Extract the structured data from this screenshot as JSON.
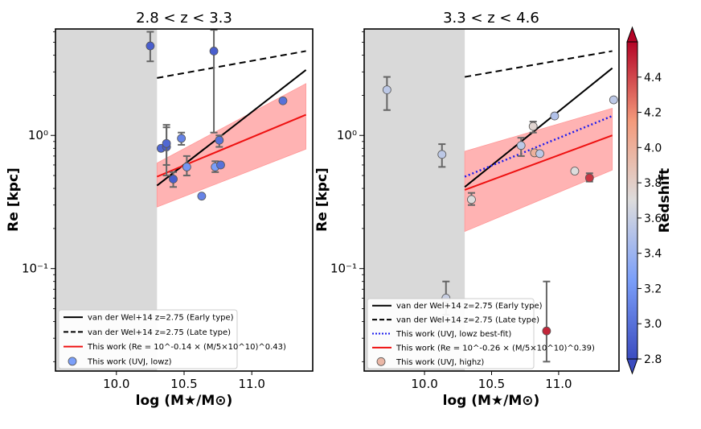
{
  "chart_data": [
    {
      "type": "scatter",
      "title": "2.8 < z < 3.3",
      "xlabel": "log (M★/M⊙)",
      "ylabel": "Re [kpc]",
      "yscale": "log",
      "xlim": [
        9.55,
        11.45
      ],
      "ylim": [
        0.017,
        6.3
      ],
      "xticks": [
        "10.0",
        "10.5",
        "11.0"
      ],
      "yticks": [
        "10⁰",
        "10⁻¹"
      ],
      "shaded_region": {
        "x": [
          9.55,
          10.3
        ]
      },
      "lines": [
        {
          "name": "van der Wel+14 z=2.75 (Early type)",
          "style": "solid",
          "color": "#000000",
          "x": [
            10.3,
            11.4
          ],
          "y": [
            0.42,
            3.1
          ]
        },
        {
          "name": "van der Wel+14 z=2.75 (Late type)",
          "style": "dashed",
          "color": "#000000",
          "x": [
            10.3,
            11.4
          ],
          "y": [
            2.7,
            4.3
          ]
        },
        {
          "name": "This work (Re = 10^-0.14 × (M/5×10^10)^0.43)",
          "style": "solid",
          "color": "#ee1111",
          "x": [
            10.3,
            11.4
          ],
          "y": [
            0.49,
            1.43
          ],
          "band_lower": [
            0.29,
            0.79
          ],
          "band_upper": [
            0.62,
            2.45
          ]
        }
      ],
      "points": [
        {
          "x": 10.25,
          "y": 4.7,
          "yerr": [
            3.6,
            6.0
          ],
          "z": 2.9
        },
        {
          "x": 10.33,
          "y": 0.8,
          "yerr": null,
          "z": 2.95
        },
        {
          "x": 10.37,
          "y": 0.82,
          "yerr": [
            0.5,
            1.2
          ],
          "z": 2.9
        },
        {
          "x": 10.37,
          "y": 0.87,
          "yerr": [
            0.6,
            1.15
          ],
          "z": 2.95
        },
        {
          "x": 10.42,
          "y": 0.47,
          "yerr": [
            0.41,
            0.53
          ],
          "z": 2.9
        },
        {
          "x": 10.48,
          "y": 0.95,
          "yerr": [
            0.85,
            1.05
          ],
          "z": 3.1
        },
        {
          "x": 10.52,
          "y": 0.58,
          "yerr": [
            0.5,
            0.7
          ],
          "z": 3.2
        },
        {
          "x": 10.63,
          "y": 0.35,
          "yerr": null,
          "z": 3.1
        },
        {
          "x": 10.72,
          "y": 4.3,
          "yerr": [
            1.05,
            6.2
          ],
          "z": 2.9
        },
        {
          "x": 10.73,
          "y": 0.58,
          "yerr": [
            0.53,
            0.64
          ],
          "z": 3.25
        },
        {
          "x": 10.76,
          "y": 0.92,
          "yerr": [
            0.82,
            1.0
          ],
          "z": 3.0
        },
        {
          "x": 10.77,
          "y": 0.6,
          "yerr": null,
          "z": 3.0
        },
        {
          "x": 11.23,
          "y": 1.82,
          "yerr": null,
          "z": 3.0
        }
      ],
      "legend": {
        "placement": "lower-left",
        "entries": [
          "van der Wel+14 z=2.75 (Early type)",
          "van der Wel+14 z=2.75 (Late type)",
          "This work (Re = 10^-0.14 × (M/5×10^10)^0.43)",
          "This work (UVJ, lowz)"
        ]
      }
    },
    {
      "type": "scatter",
      "title": "3.3 < z < 4.6",
      "xlabel": "log (M★/M⊙)",
      "ylabel": "Re [kpc]",
      "yscale": "log",
      "xlim": [
        9.55,
        11.45
      ],
      "ylim": [
        0.017,
        6.3
      ],
      "xticks": [
        "10.0",
        "10.5",
        "11.0"
      ],
      "yticks": [
        "10⁰",
        "10⁻¹"
      ],
      "shaded_region": {
        "x": [
          9.55,
          10.3
        ]
      },
      "lines": [
        {
          "name": "van der Wel+14 z=2.75 (Early type)",
          "style": "solid",
          "color": "#000000",
          "x": [
            10.3,
            11.4
          ],
          "y": [
            0.41,
            3.2
          ]
        },
        {
          "name": "van der Wel+14 z=2.75 (Late type)",
          "style": "dashed",
          "color": "#000000",
          "x": [
            10.3,
            11.4
          ],
          "y": [
            2.75,
            4.3
          ]
        },
        {
          "name": "This work (UVJ, lowz best-fit)",
          "style": "dotted",
          "color": "#1a1aee",
          "x": [
            10.3,
            11.4
          ],
          "y": [
            0.49,
            1.4
          ]
        },
        {
          "name": "This work (Re = 10^-0.26 × (M/5×10^10)^0.39)",
          "style": "solid",
          "color": "#ee1111",
          "x": [
            10.3,
            11.4
          ],
          "y": [
            0.39,
            1.0
          ],
          "band_lower": [
            0.19,
            0.55
          ],
          "band_upper": [
            0.76,
            1.6
          ]
        }
      ],
      "points": [
        {
          "x": 9.72,
          "y": 2.2,
          "yerr": [
            1.55,
            2.75
          ],
          "z": 3.55
        },
        {
          "x": 10.13,
          "y": 0.72,
          "yerr": [
            0.58,
            0.86
          ],
          "z": 3.55
        },
        {
          "x": 10.16,
          "y": 0.06,
          "yerr": [
            0.045,
            0.08
          ],
          "z": 3.6
        },
        {
          "x": 10.35,
          "y": 0.33,
          "yerr": [
            0.3,
            0.37
          ],
          "z": 3.7
        },
        {
          "x": 10.72,
          "y": 0.84,
          "yerr": [
            0.7,
            0.96
          ],
          "z": 3.55
        },
        {
          "x": 10.81,
          "y": 1.17,
          "yerr": [
            1.05,
            1.27
          ],
          "z": 3.75
        },
        {
          "x": 10.82,
          "y": 0.74,
          "yerr": null,
          "z": 4.0
        },
        {
          "x": 10.86,
          "y": 0.73,
          "yerr": null,
          "z": 3.55
        },
        {
          "x": 10.91,
          "y": 0.034,
          "yerr": [
            0.02,
            0.08
          ],
          "z": 4.5
        },
        {
          "x": 10.97,
          "y": 1.4,
          "yerr": null,
          "z": 3.5
        },
        {
          "x": 11.12,
          "y": 0.54,
          "yerr": null,
          "z": 3.7
        },
        {
          "x": 11.23,
          "y": 0.48,
          "yerr": [
            0.45,
            0.52
          ],
          "z": 4.45
        },
        {
          "x": 11.41,
          "y": 1.85,
          "yerr": null,
          "z": 3.55
        }
      ],
      "legend": {
        "placement": "lower-left",
        "entries": [
          "van der Wel+14 z=2.75 (Early type)",
          "van der Wel+14 z=2.75 (Late type)",
          "This work (UVJ, lowz best-fit)",
          "This work (Re = 10^-0.26 × (M/5×10^10)^0.39)",
          "This work (UVJ, highz)"
        ]
      }
    }
  ],
  "colorbar": {
    "label": "Redshift",
    "range": [
      2.8,
      4.6
    ],
    "ticks": [
      "2.8",
      "3.0",
      "3.2",
      "3.4",
      "3.6",
      "3.8",
      "4.0",
      "4.2",
      "4.4"
    ],
    "colormap": "coolwarm"
  },
  "colors": {
    "shade": "#d9d9d9",
    "fit_red": "#ee1111",
    "band": "#ff9999",
    "dotted_blue": "#1a1aee",
    "errorbar": "#666666"
  }
}
